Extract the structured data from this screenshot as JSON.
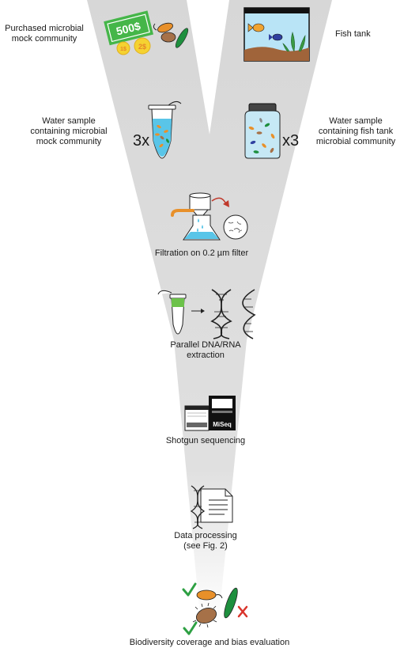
{
  "inputs": {
    "mock_label_lines": [
      "Purchased microbial",
      "mock community"
    ],
    "tank_label": "Fish tank",
    "banknote_text": "500$",
    "coin_1_text": "1$",
    "coin_2_text": "2$"
  },
  "samples": {
    "mock_lines": [
      "Water sample",
      "containing microbial",
      "mock community"
    ],
    "tank_lines": [
      "Water sample",
      "containing fish tank",
      "microbial community"
    ],
    "mock_replicates": "3x",
    "tank_replicates": "x3"
  },
  "steps": {
    "filtration": "Filtration on 0.2 µm filter",
    "extraction_lines": [
      "Parallel DNA/RNA",
      "extraction"
    ],
    "sequencing": "Shotgun sequencing",
    "sequencer_brand": "MiSeq",
    "processing_lines": [
      "Data processing",
      "(see Fig. 2)"
    ],
    "evaluation": "Biodiversity coverage and bias evaluation"
  },
  "colors": {
    "funnel": "#d9d9d9",
    "money_green": "#45b649",
    "coin_yellow": "#f5d231",
    "coin_text": "#e5862a",
    "microbe_orange": "#e8902a",
    "microbe_brown": "#a67148",
    "microbe_green": "#1e8f3e",
    "water_blue": "#59c5e8",
    "tank_blue": "#b9e4f6",
    "tank_sand": "#a0643a",
    "check_green": "#2ea043",
    "cross_red": "#d9342b",
    "arrow_red": "#c0392b",
    "tube_green": "#6cc24a"
  },
  "icons": {
    "mock": "banknote-coins-microbes-icon",
    "tank": "fish-tank-icon",
    "mock_tube": "microtube-icon",
    "tank_jar": "sample-jar-icon",
    "filtration": "vacuum-filtration-flask-icon",
    "extraction": "extraction-tube-dna-rna-icon",
    "sequencer": "miseq-sequencer-icon",
    "processing": "dna-document-icon",
    "evaluation": "check-cross-microbes-icon"
  }
}
